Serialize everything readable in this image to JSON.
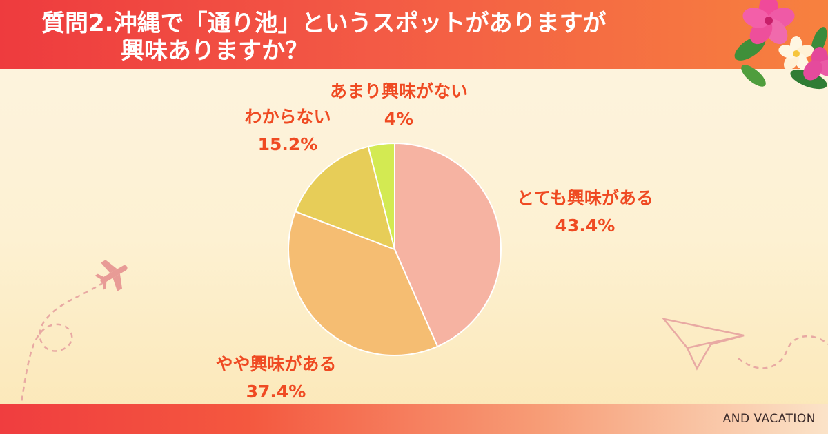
{
  "title": {
    "line1": "質問2.沖縄で「通り池」というスポットがありますが",
    "line2": "興味ありますか？"
  },
  "brand": "AND VACATION",
  "colors": {
    "header_start": "#ee3b3e",
    "header_end": "#f7813f",
    "label": "#ef4a22"
  },
  "decorations": [
    "hibiscus-flower-icon",
    "airplane-icon",
    "paper-plane-icon"
  ],
  "chart_data": {
    "type": "pie",
    "title": "",
    "start_angle_deg": 0,
    "direction": "clockwise",
    "slices": [
      {
        "label": "とても興味がある",
        "value": 43.4,
        "value_label": "43.4%",
        "color": "#f6b3a2"
      },
      {
        "label": "やや興味がある",
        "value": 37.4,
        "value_label": "37.4%",
        "color": "#f5bd72"
      },
      {
        "label": "わからない",
        "value": 15.2,
        "value_label": "15.2%",
        "color": "#e7cd58"
      },
      {
        "label": "あまり興味がない",
        "value": 4,
        "value_label": "4%",
        "color": "#d3ea52"
      }
    ]
  }
}
